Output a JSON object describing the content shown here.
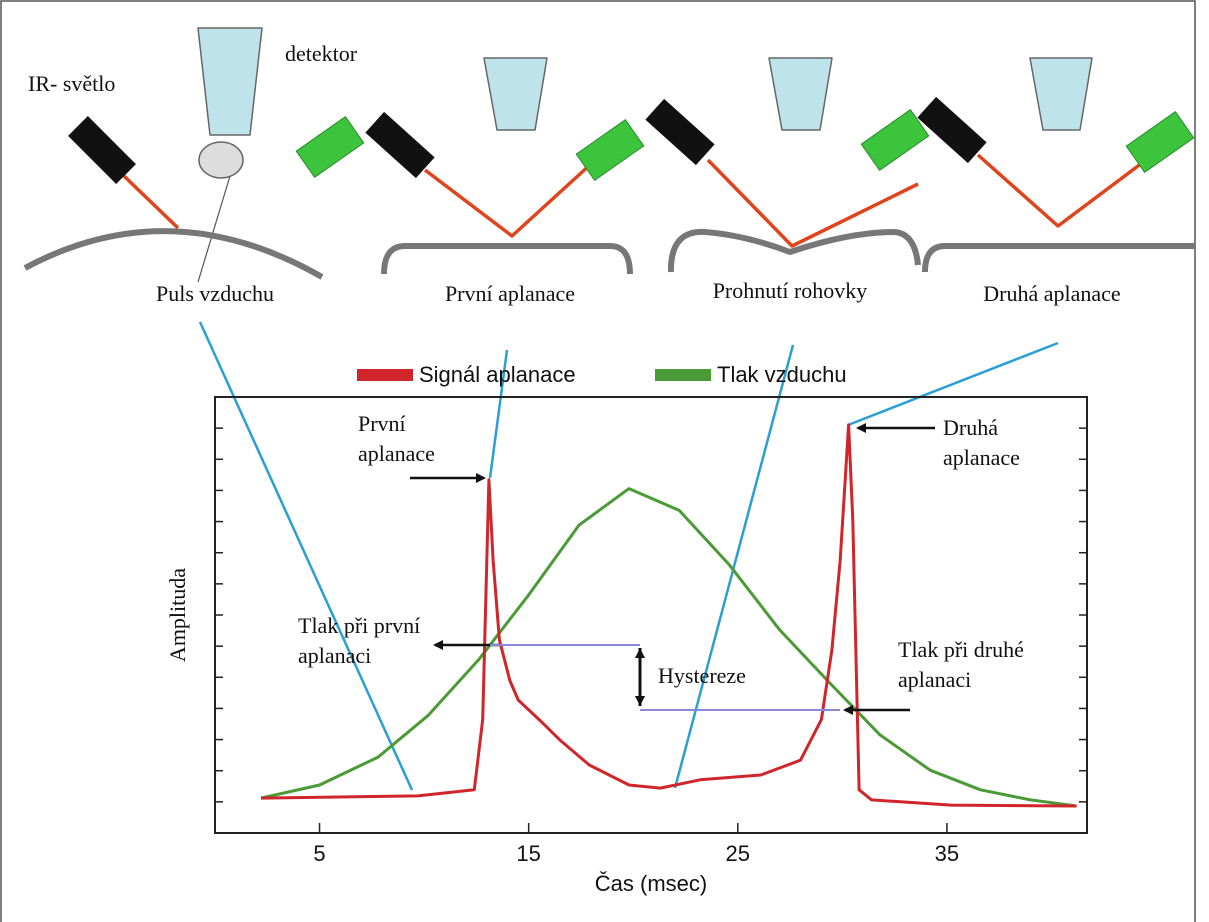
{
  "diagram": {
    "source_label": "IR- světlo",
    "detector_label": "detektor",
    "panels": [
      "Puls vzduchu",
      "První aplanace",
      "Prohnutí rohovky",
      "Druhá aplanace"
    ]
  },
  "chart_data": {
    "type": "line",
    "x_label": "Čas (msec)",
    "y_label": "Amplituda",
    "xlim": [
      0,
      41.7
    ],
    "ylim": [
      0,
      100
    ],
    "xticks": [
      5,
      15,
      25,
      35
    ],
    "series": [
      {
        "name": "Signál aplanace",
        "color": "#d0262b",
        "x": [
          2.2,
          9.7,
          12.4,
          12.8,
          13.1,
          13.3,
          13.6,
          14.1,
          14.5,
          15.5,
          16.5,
          17.9,
          19.8,
          21.3,
          23.2,
          26.1,
          28,
          29,
          29.5,
          29.9,
          30.3,
          30.5,
          30.8,
          31.4,
          35.2,
          41.2
        ],
        "values": [
          8,
          8.5,
          9.9,
          26,
          81,
          62.6,
          44.3,
          35,
          30.5,
          26,
          21.3,
          15.6,
          11,
          10.3,
          12.2,
          13.3,
          16.7,
          26,
          42,
          62.6,
          93.6,
          71.8,
          9.9,
          7.6,
          6.4,
          6.2
        ]
      },
      {
        "name": "Tlak vzduchu",
        "color": "#4a9a35",
        "x": [
          2.2,
          5,
          7.8,
          10.2,
          12.6,
          15,
          17.4,
          19.8,
          22.2,
          24.6,
          27,
          29.4,
          31.8,
          34.2,
          36.6,
          39,
          41.2
        ],
        "values": [
          8,
          11,
          17.4,
          27,
          39.7,
          54.6,
          70.6,
          79,
          74,
          61.5,
          46.6,
          34.4,
          22.5,
          14.4,
          9.9,
          7.6,
          6.2
        ]
      }
    ],
    "annotations": {
      "first_applanation": [
        "První",
        "aplanace"
      ],
      "second_applanation": [
        "Druhá",
        "aplanace"
      ],
      "first_pressure": [
        "Tlak při první",
        "aplanaci"
      ],
      "second_pressure": [
        "Tlak při druhé",
        "aplanaci"
      ],
      "hysteresis": "Hystereze"
    }
  }
}
